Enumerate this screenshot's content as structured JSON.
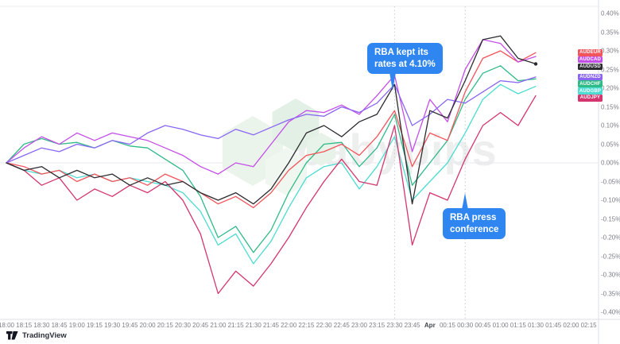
{
  "watermark": {
    "text": "babypips"
  },
  "branding": {
    "logo_text": "TradingView"
  },
  "annotations": {
    "rate_decision": {
      "line1": "RBA kept its",
      "line2": "rates at 4.10%"
    },
    "press_conference": {
      "line1": "RBA press",
      "line2": "conference"
    }
  },
  "chart_data": {
    "type": "line",
    "title": "",
    "xlabel": "",
    "ylabel": "",
    "x_labels": [
      "18:00",
      "18:15",
      "18:30",
      "18:45",
      "19:00",
      "19:15",
      "19:30",
      "19:45",
      "20:00",
      "20:15",
      "20:30",
      "20:45",
      "21:00",
      "21:15",
      "21:30",
      "21:45",
      "22:00",
      "22:15",
      "22:30",
      "22:45",
      "23:00",
      "23:15",
      "23:30",
      "23:45",
      "Apr",
      "00:15",
      "00:30",
      "00:45",
      "01:00",
      "01:15",
      "01:30",
      "01:45",
      "02:00",
      "02:15"
    ],
    "y_tick_labels": [
      "0.40%",
      "0.35%",
      "0.30%",
      "0.25%",
      "0.20%",
      "0.15%",
      "0.10%",
      "0.05%",
      "0.00%",
      "-0.05%",
      "-0.10%",
      "-0.15%",
      "-0.20%",
      "-0.25%",
      "-0.30%",
      "-0.35%",
      "-0.40%"
    ],
    "y_tick_values": [
      0.4,
      0.35,
      0.3,
      0.25,
      0.2,
      0.15,
      0.1,
      0.05,
      0.0,
      -0.05,
      -0.1,
      -0.15,
      -0.2,
      -0.25,
      -0.3,
      -0.35,
      -0.4
    ],
    "ylim": [
      -0.425,
      0.425
    ],
    "grid": {
      "zero_line": true,
      "event_lines_at": [
        "23:30",
        "00:30"
      ],
      "legend_position": "right-price-flags"
    },
    "series": [
      {
        "name": "AUDEUR",
        "color": "#f2545b",
        "values": [
          0,
          -0.01,
          -0.03,
          -0.02,
          -0.05,
          -0.03,
          -0.05,
          -0.04,
          -0.06,
          -0.03,
          -0.05,
          -0.08,
          -0.11,
          -0.09,
          -0.12,
          -0.08,
          -0.02,
          0.02,
          0.03,
          0.05,
          0.02,
          0.07,
          0.14,
          -0.01,
          0.08,
          0.06,
          0.19,
          0.28,
          0.3,
          0.27,
          0.295
        ]
      },
      {
        "name": "AUDCAD",
        "color": "#c44fe8",
        "values": [
          0,
          0.04,
          0.07,
          0.05,
          0.08,
          0.06,
          0.08,
          0.07,
          0.06,
          0.04,
          0.02,
          -0.01,
          -0.03,
          0.0,
          -0.01,
          0.05,
          0.11,
          0.14,
          0.135,
          0.155,
          0.13,
          0.18,
          0.235,
          0.03,
          0.17,
          0.11,
          0.25,
          0.33,
          0.32,
          0.27,
          0.285
        ]
      },
      {
        "name": "AUDUSD",
        "color": "#2b2b30",
        "values": [
          0,
          -0.02,
          -0.01,
          -0.04,
          -0.02,
          -0.04,
          -0.03,
          -0.06,
          -0.04,
          -0.06,
          -0.05,
          -0.08,
          -0.1,
          -0.08,
          -0.11,
          -0.07,
          0.0,
          0.08,
          0.1,
          0.07,
          0.11,
          0.13,
          0.21,
          -0.11,
          0.14,
          0.12,
          0.22,
          0.33,
          0.34,
          0.28,
          0.265
        ]
      },
      {
        "name": "AUDNZD",
        "color": "#8a66f2",
        "values": [
          0,
          0.02,
          0.04,
          0.03,
          0.05,
          0.04,
          0.06,
          0.05,
          0.08,
          0.1,
          0.09,
          0.075,
          0.065,
          0.09,
          0.075,
          0.095,
          0.115,
          0.13,
          0.125,
          0.15,
          0.135,
          0.16,
          0.21,
          0.1,
          0.13,
          0.17,
          0.16,
          0.19,
          0.22,
          0.215,
          0.23
        ]
      },
      {
        "name": "AUDCHF",
        "color": "#2fbb87",
        "values": [
          0,
          0.05,
          0.065,
          0.05,
          0.055,
          0.04,
          0.06,
          0.045,
          0.04,
          0.01,
          -0.02,
          -0.09,
          -0.2,
          -0.17,
          -0.24,
          -0.18,
          -0.08,
          0.0,
          0.05,
          0.055,
          -0.01,
          0.04,
          0.13,
          -0.06,
          0.0,
          0.06,
          0.17,
          0.24,
          0.26,
          0.22,
          0.225
        ]
      },
      {
        "name": "AUDGBP",
        "color": "#4cdcd2",
        "values": [
          0,
          -0.02,
          -0.03,
          -0.02,
          -0.04,
          -0.03,
          -0.05,
          -0.04,
          -0.05,
          -0.06,
          -0.08,
          -0.13,
          -0.22,
          -0.19,
          -0.27,
          -0.21,
          -0.12,
          -0.04,
          -0.01,
          0.0,
          -0.07,
          -0.01,
          0.07,
          -0.1,
          -0.05,
          0.0,
          0.08,
          0.17,
          0.21,
          0.185,
          0.205
        ]
      },
      {
        "name": "AUDJPY",
        "color": "#d4356e",
        "values": [
          0,
          -0.02,
          -0.06,
          -0.04,
          -0.1,
          -0.07,
          -0.09,
          -0.06,
          -0.08,
          -0.05,
          -0.1,
          -0.19,
          -0.35,
          -0.29,
          -0.33,
          -0.27,
          -0.2,
          -0.12,
          -0.05,
          0.01,
          -0.05,
          -0.06,
          0.1,
          -0.22,
          -0.08,
          -0.1,
          0.01,
          0.1,
          0.135,
          0.1,
          0.18
        ]
      }
    ]
  }
}
